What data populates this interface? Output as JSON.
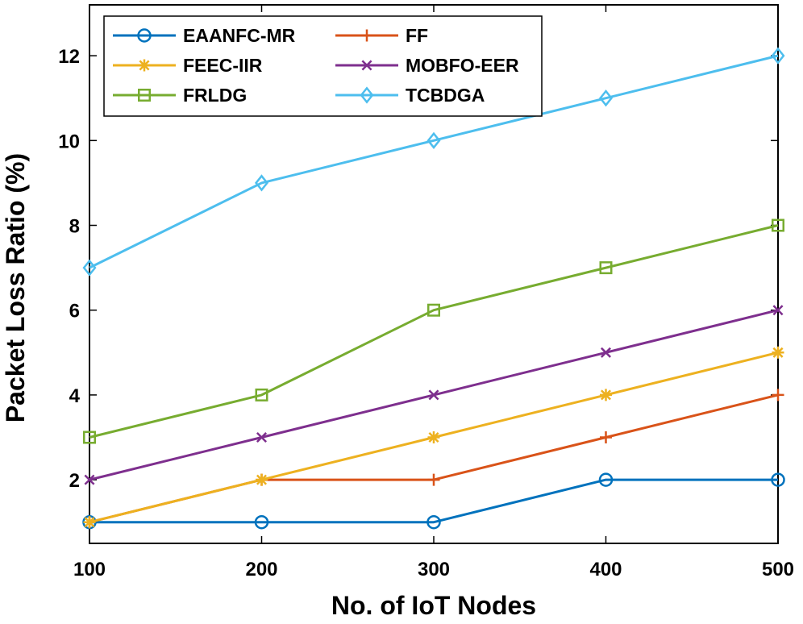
{
  "chart_data": {
    "type": "line",
    "title": "",
    "xlabel": "No. of IoT Nodes",
    "ylabel": "Packet Loss Ratio (%)",
    "x": [
      100,
      200,
      300,
      400,
      500
    ],
    "xlim": [
      100,
      500
    ],
    "ylim": [
      0.5,
      13.2
    ],
    "xticks": [
      100,
      200,
      300,
      400,
      500
    ],
    "yticks": [
      2,
      4,
      6,
      8,
      10,
      12
    ],
    "grid": false,
    "legend_position": "top-left",
    "series": [
      {
        "name": "EAANFC-MR",
        "color": "#0072BD",
        "marker": "circle",
        "values": [
          1,
          1,
          1,
          2,
          2
        ]
      },
      {
        "name": "FF",
        "color": "#D95319",
        "marker": "plus",
        "values": [
          1,
          2,
          2,
          3,
          4
        ]
      },
      {
        "name": "FEEC-IIR",
        "color": "#EDB120",
        "marker": "asterisk",
        "values": [
          1,
          2,
          3,
          4,
          5
        ]
      },
      {
        "name": "MOBFO-EER",
        "color": "#7E2F8E",
        "marker": "x",
        "values": [
          2,
          3,
          4,
          5,
          6
        ]
      },
      {
        "name": "FRLDG",
        "color": "#77AC30",
        "marker": "square",
        "values": [
          3,
          4,
          6,
          7,
          8
        ]
      },
      {
        "name": "TCBDGA",
        "color": "#4DBEEE",
        "marker": "diamond",
        "values": [
          7,
          9,
          10,
          11,
          12
        ]
      }
    ]
  }
}
